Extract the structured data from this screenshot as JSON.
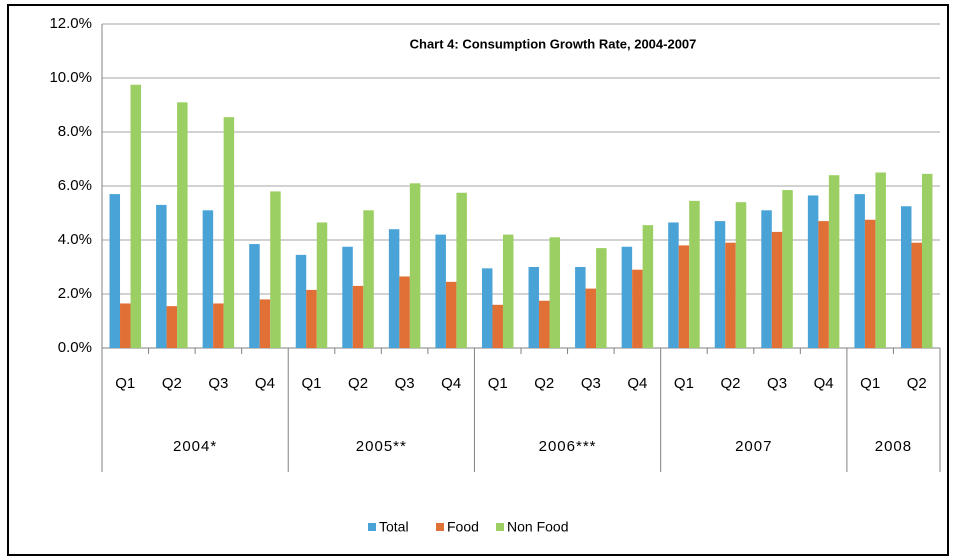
{
  "chart_data": {
    "type": "bar",
    "title": "Chart 4: Consumption Growth Rate, 2004-2007",
    "groups": [
      {
        "name": "2004*",
        "categories": [
          "Q1",
          "Q2",
          "Q3",
          "Q4"
        ]
      },
      {
        "name": "2005**",
        "categories": [
          "Q1",
          "Q2",
          "Q3",
          "Q4"
        ]
      },
      {
        "name": "2006***",
        "categories": [
          "Q1",
          "Q2",
          "Q3",
          "Q4"
        ]
      },
      {
        "name": "2007",
        "categories": [
          "Q1",
          "Q2",
          "Q3",
          "Q4"
        ]
      },
      {
        "name": "2008",
        "categories": [
          "Q1",
          "Q2"
        ]
      }
    ],
    "series": [
      {
        "name": "Total",
        "color": "#4aa3d6",
        "values": [
          5.7,
          5.3,
          5.1,
          3.85,
          3.45,
          3.75,
          4.4,
          4.2,
          2.95,
          3.0,
          3.0,
          3.75,
          4.65,
          4.7,
          5.1,
          5.65,
          5.7,
          5.25
        ]
      },
      {
        "name": "Food",
        "color": "#e07035",
        "values": [
          1.65,
          1.55,
          1.65,
          1.8,
          2.15,
          2.3,
          2.65,
          2.45,
          1.6,
          1.75,
          2.2,
          2.9,
          3.8,
          3.9,
          4.3,
          4.7,
          4.75,
          3.9
        ]
      },
      {
        "name": "Non Food",
        "color": "#9ccf63",
        "values": [
          9.75,
          9.1,
          8.55,
          5.8,
          4.65,
          5.1,
          6.1,
          5.75,
          4.2,
          4.1,
          3.7,
          4.55,
          5.45,
          5.4,
          5.85,
          6.4,
          6.5,
          6.45
        ]
      }
    ],
    "ylim": [
      0,
      12
    ],
    "yticks": [
      {
        "value": 0,
        "label": "0.0%"
      },
      {
        "value": 2,
        "label": "2.0%"
      },
      {
        "value": 4,
        "label": "4.0%"
      },
      {
        "value": 6,
        "label": "6.0%"
      },
      {
        "value": 8,
        "label": "8.0%"
      },
      {
        "value": 10,
        "label": "10.0%"
      },
      {
        "value": 12,
        "label": "12.0%"
      }
    ],
    "grid": true,
    "legend": "bottom"
  }
}
